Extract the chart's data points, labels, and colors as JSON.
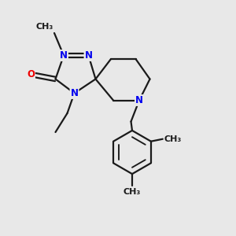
{
  "bg_color": "#e8e8e8",
  "bond_color": "#1a1a1a",
  "N_color": "#0000ee",
  "O_color": "#ee0000",
  "font_size": 8.5,
  "bond_width": 1.6,
  "figsize": [
    3.0,
    3.0
  ],
  "dpi": 100,
  "xlim": [
    0,
    10
  ],
  "ylim": [
    0,
    10
  ]
}
